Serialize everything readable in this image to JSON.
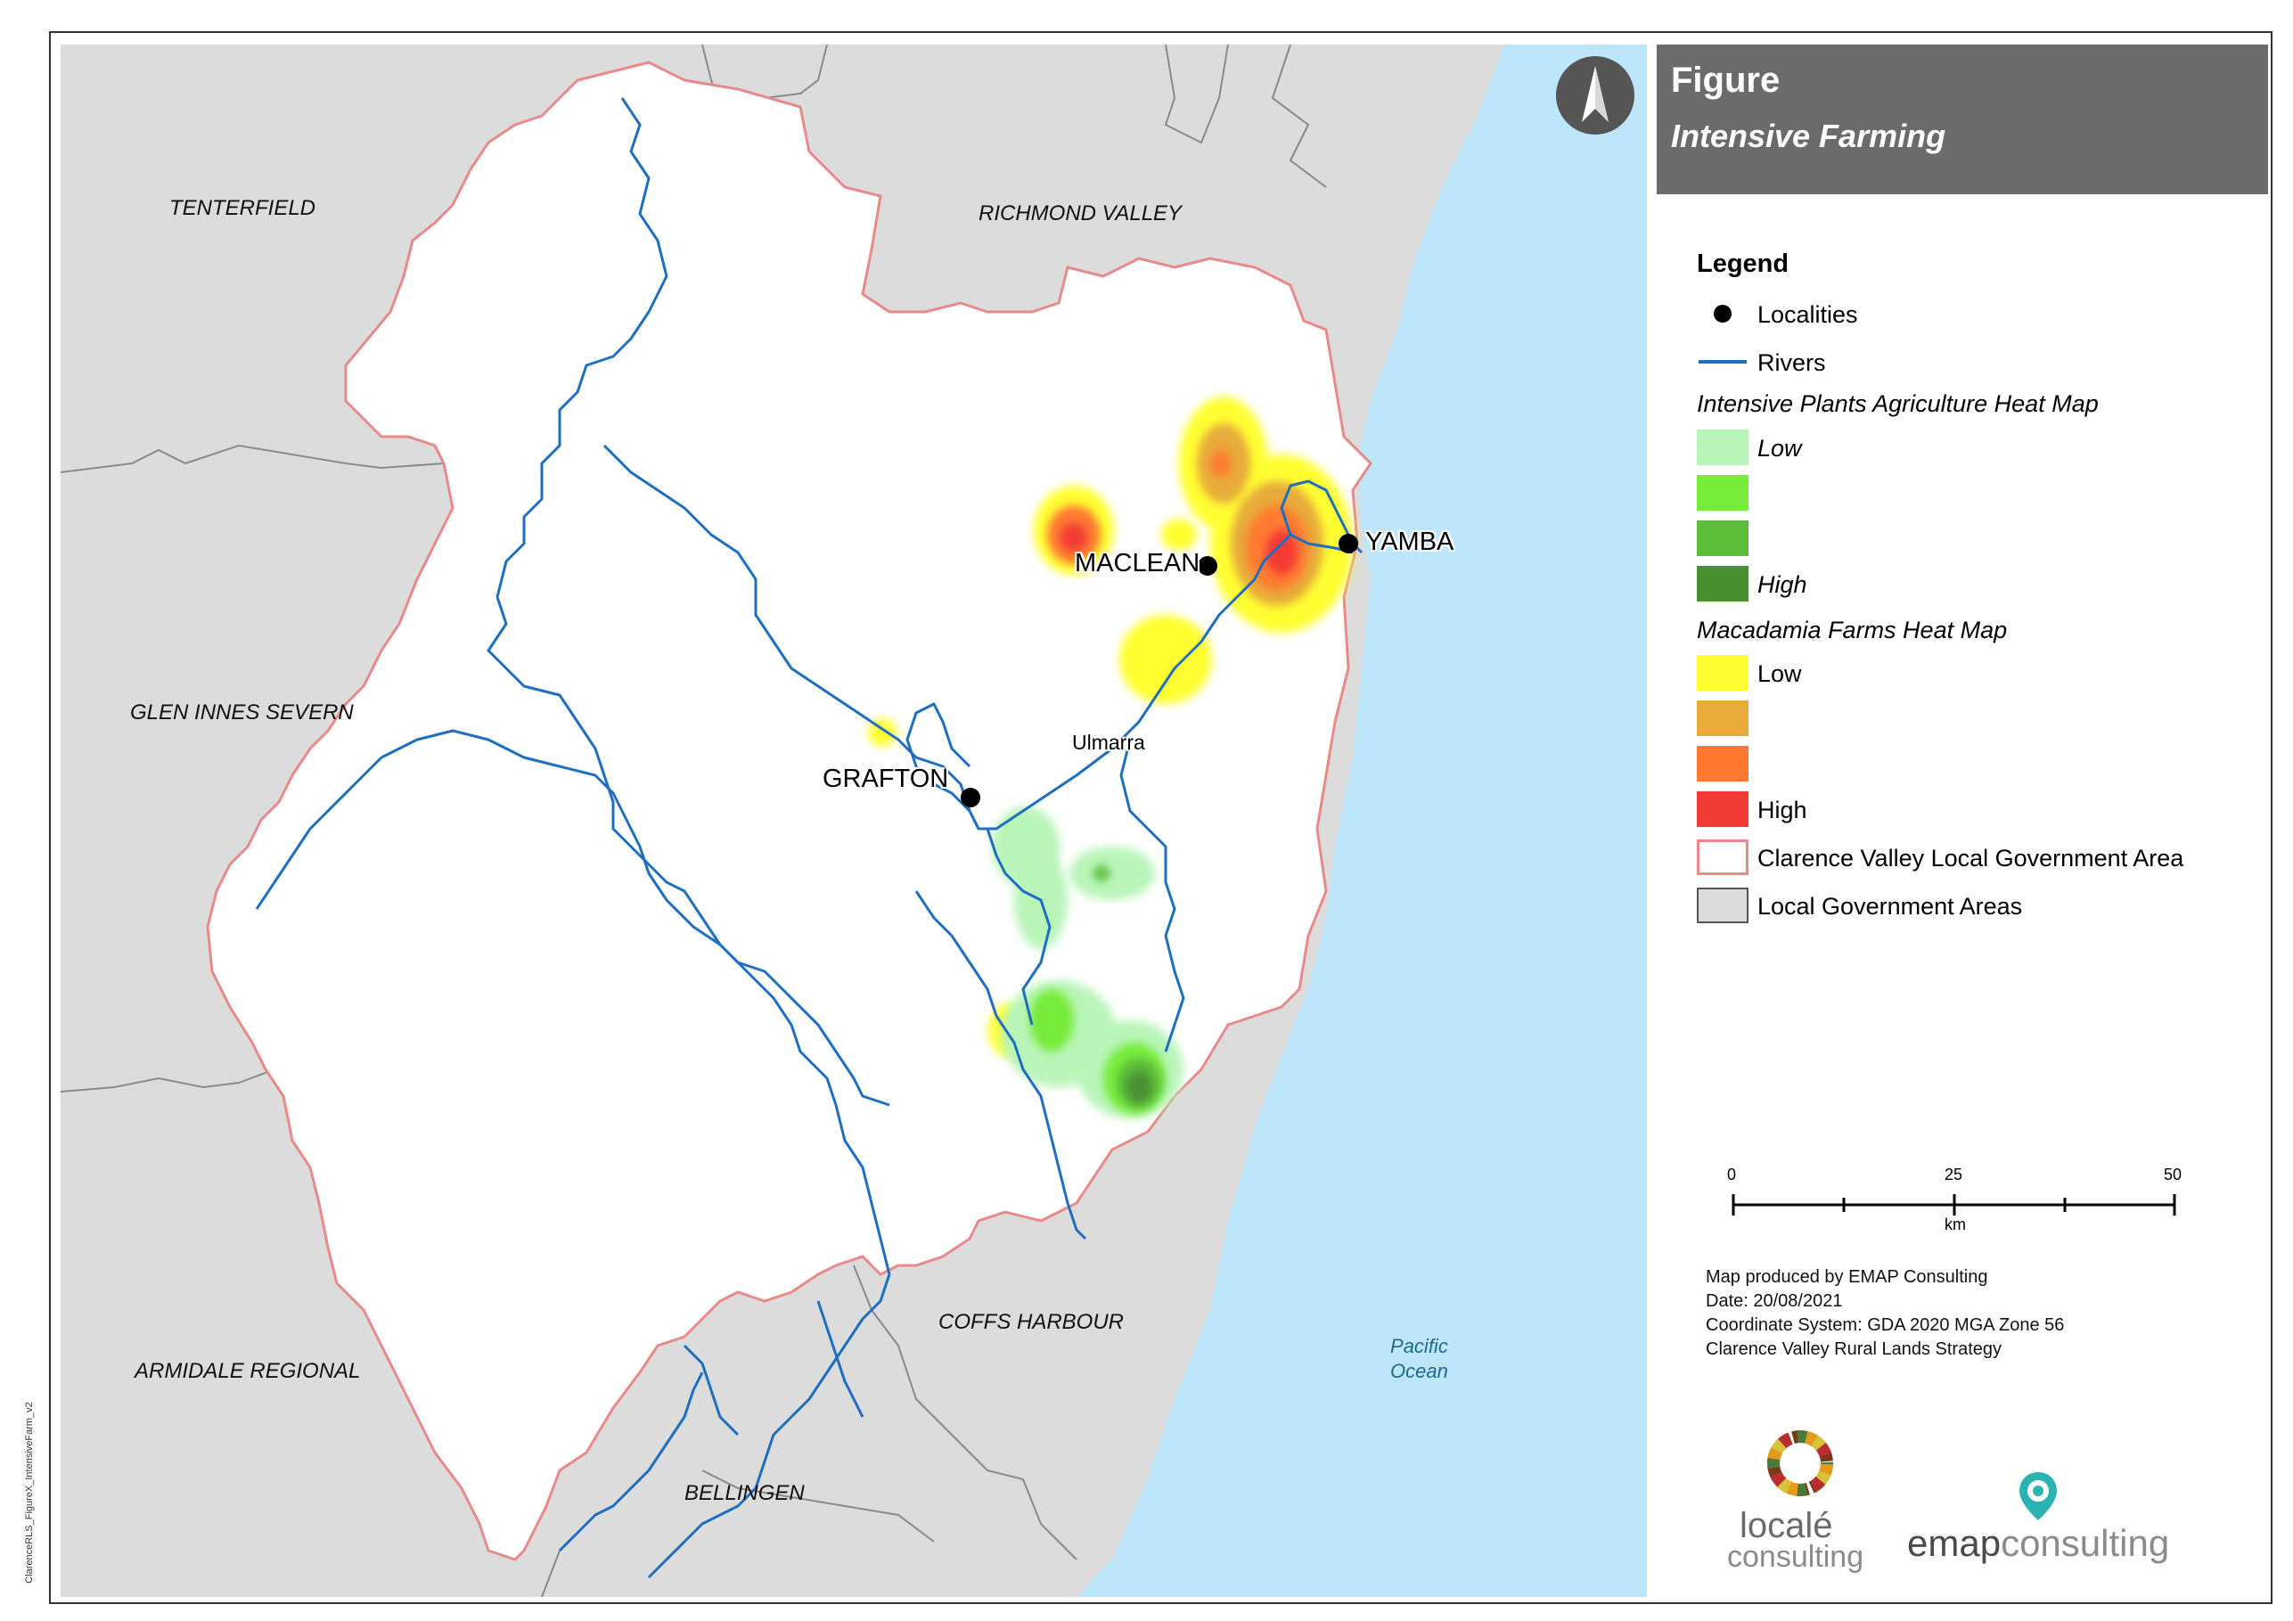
{
  "title": {
    "line1": "Figure",
    "line2": "Intensive Farming"
  },
  "north_arrow": {
    "icon": "north-arrow-icon"
  },
  "map": {
    "lga_labels": [
      "TENTERFIELD",
      "RICHMOND VALLEY",
      "GLEN INNES SEVERN",
      "ARMIDALE REGIONAL",
      "COFFS HARBOUR",
      "BELLINGEN"
    ],
    "localities": [
      "MACLEAN",
      "YAMBA",
      "GRAFTON",
      "Ulmarra"
    ],
    "ocean_label_line1": "Pacific",
    "ocean_label_line2": "Ocean"
  },
  "legend": {
    "title": "Legend",
    "localities": "Localities",
    "rivers": "Rivers",
    "plants_heading": "Intensive Plants Agriculture Heat Map",
    "plants_low": "Low",
    "plants_high": "High",
    "macadamia_heading": "Macadamia Farms Heat Map",
    "macadamia_low": "Low",
    "macadamia_high": "High",
    "clarence_lga": "Clarence Valley Local Government Area",
    "lgas": "Local Government Areas"
  },
  "colors": {
    "plants": [
      "#b9f5b9",
      "#77ec3a",
      "#5cbc3a",
      "#4a8f30"
    ],
    "macadamia": [
      "#ffff33",
      "#e8ab3a",
      "#ff7a30",
      "#f23a36"
    ],
    "ocean": "#bee6fb",
    "lga_fill": "#dcdcdc",
    "clarence_outline": "#e88a8a",
    "river": "#1f6fc0"
  },
  "scale": {
    "ticks": [
      "0",
      "25",
      "50"
    ],
    "unit": "km"
  },
  "credits": {
    "line1": "Map produced by EMAP Consulting",
    "line2": "Date: 20/08/2021",
    "line3": "Coordinate System: GDA 2020 MGA Zone 56",
    "line4": "Clarence Valley Rural Lands Strategy"
  },
  "logos": {
    "locale_line1": "localé",
    "locale_line2": "consulting",
    "emap_part1": "emap",
    "emap_part2": "consulting"
  },
  "file_note": "ClarenceRLS_FigureX_IntensiveFarm_v2"
}
